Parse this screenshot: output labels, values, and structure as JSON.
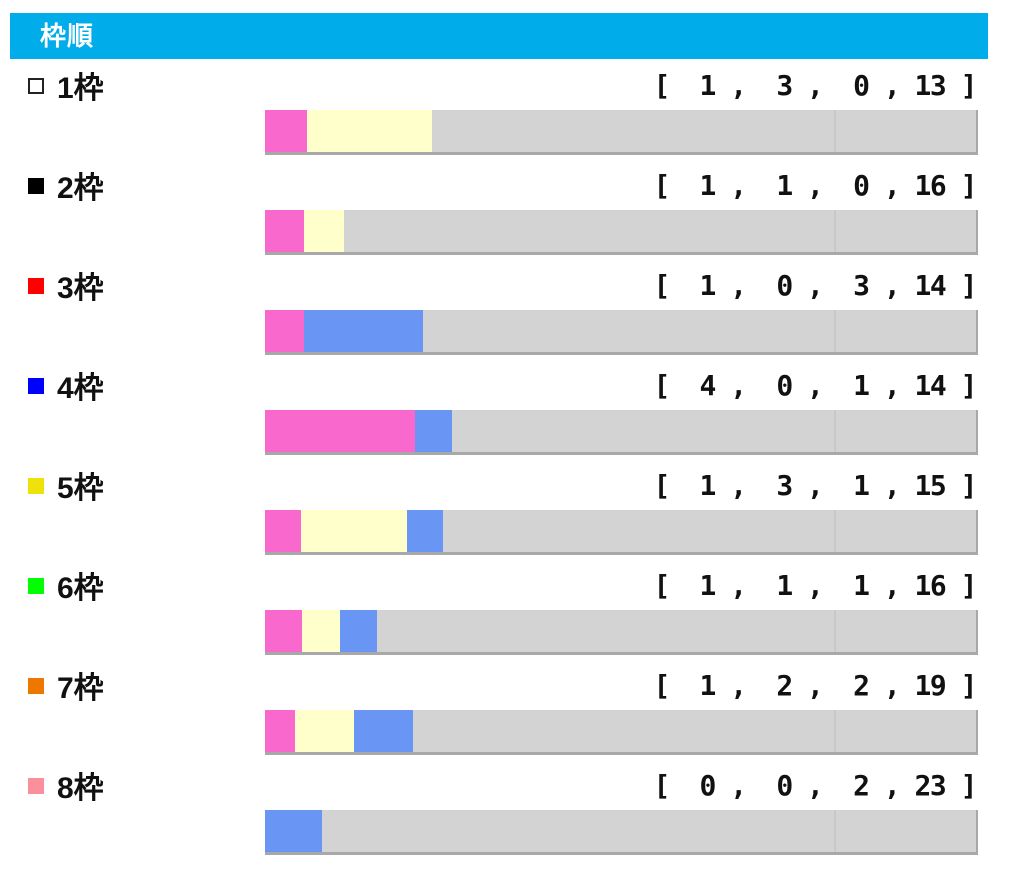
{
  "header": {
    "title": "枠順",
    "bg": "#00ACE9",
    "text_color": "#FFFFFF"
  },
  "colors": {
    "segment_first": "#F968CD",
    "segment_second": "#FFFFCC",
    "segment_third": "#6996F5",
    "bar_background": "#D3D3D3",
    "bar_shadow": "#A8A8A8"
  },
  "chart_data": {
    "type": "bar",
    "orientation": "horizontal",
    "stacked": true,
    "normalization": "each bar spans full width scaled to its own row total",
    "title": "枠順",
    "categories": [
      "1枠",
      "2枠",
      "3枠",
      "4枠",
      "5枠",
      "6枠",
      "7枠",
      "8枠"
    ],
    "series": [
      {
        "name": "segment-pink",
        "color": "#F968CD",
        "values": [
          1,
          1,
          1,
          4,
          1,
          1,
          1,
          0
        ]
      },
      {
        "name": "segment-cream",
        "color": "#FFFFCC",
        "values": [
          3,
          1,
          0,
          0,
          3,
          1,
          2,
          0
        ]
      },
      {
        "name": "segment-blue",
        "color": "#6996F5",
        "values": [
          0,
          0,
          3,
          1,
          1,
          1,
          2,
          2
        ]
      },
      {
        "name": "segment-gray",
        "color": "#D3D3D3",
        "values": [
          13,
          16,
          14,
          14,
          15,
          16,
          19,
          23
        ]
      }
    ],
    "rows": [
      {
        "label": "1枠",
        "marker_color": "#FFFFFF",
        "marker_border": "#222222",
        "values": [
          1,
          3,
          0,
          13
        ],
        "display": "[  1 ,  3 ,  0 , 13 ]"
      },
      {
        "label": "2枠",
        "marker_color": "#000000",
        "values": [
          1,
          1,
          0,
          16
        ],
        "display": "[  1 ,  1 ,  0 , 16 ]"
      },
      {
        "label": "3枠",
        "marker_color": "#FF0000",
        "values": [
          1,
          0,
          3,
          14
        ],
        "display": "[  1 ,  0 ,  3 , 14 ]"
      },
      {
        "label": "4枠",
        "marker_color": "#0000FF",
        "values": [
          4,
          0,
          1,
          14
        ],
        "display": "[  4 ,  0 ,  1 , 14 ]"
      },
      {
        "label": "5枠",
        "marker_color": "#EFE20B",
        "values": [
          1,
          3,
          1,
          15
        ],
        "display": "[  1 ,  3 ,  1 , 15 ]"
      },
      {
        "label": "6枠",
        "marker_color": "#00FF00",
        "values": [
          1,
          1,
          1,
          16
        ],
        "display": "[  1 ,  1 ,  1 , 16 ]"
      },
      {
        "label": "7枠",
        "marker_color": "#EE7700",
        "values": [
          1,
          2,
          2,
          19
        ],
        "display": "[  1 ,  2 ,  2 , 19 ]"
      },
      {
        "label": "8枠",
        "marker_color": "#F9909B",
        "values": [
          0,
          0,
          2,
          23
        ],
        "display": "[  0 ,  0 ,  2 , 23 ]"
      }
    ]
  }
}
